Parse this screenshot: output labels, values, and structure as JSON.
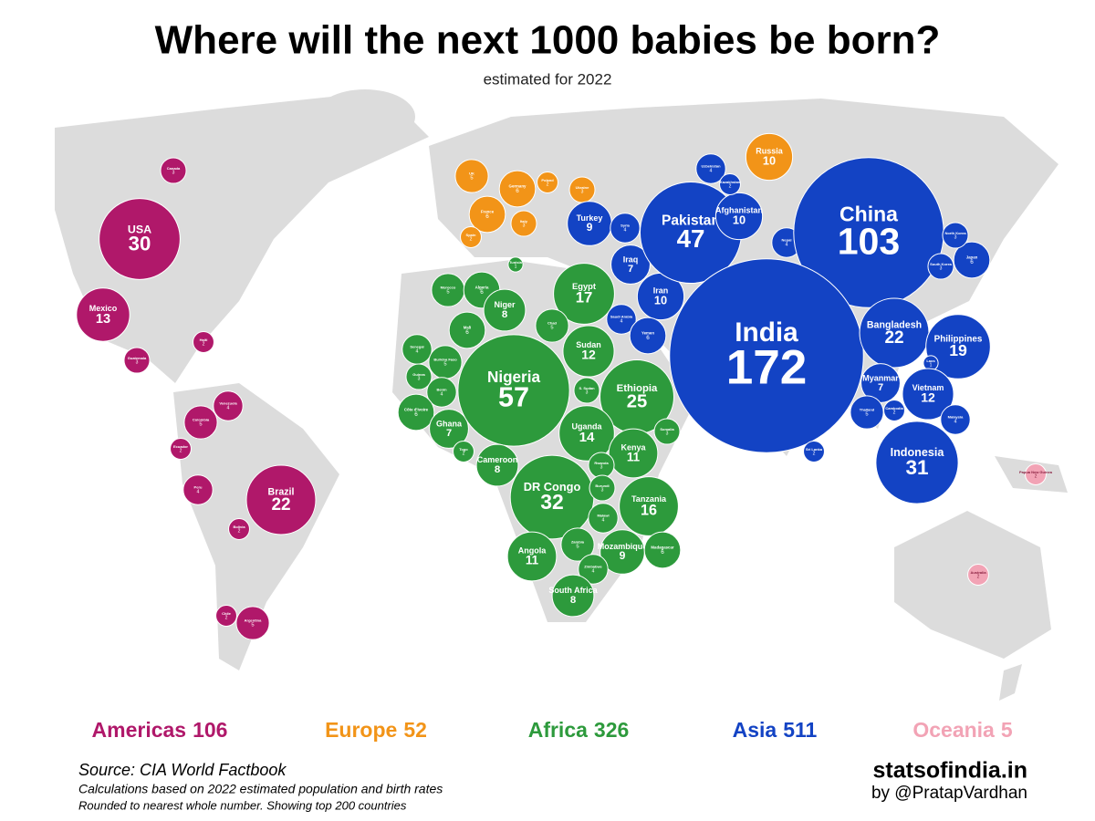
{
  "title": "Where will the next 1000 babies be born?",
  "subtitle": "estimated for 2022",
  "regions": [
    {
      "name": "Americas",
      "total": 106,
      "color": "#b0186a",
      "countries": [
        {
          "name": "Canada",
          "value": 3
        },
        {
          "name": "USA",
          "value": 30
        },
        {
          "name": "Mexico",
          "value": 13
        },
        {
          "name": "Guatemala",
          "value": 3
        },
        {
          "name": "Haiti",
          "value": 2
        },
        {
          "name": "Venezuela",
          "value": 4
        },
        {
          "name": "Colombia",
          "value": 5
        },
        {
          "name": "Ecuador",
          "value": 2
        },
        {
          "name": "Peru",
          "value": 4
        },
        {
          "name": "Brazil",
          "value": 22
        },
        {
          "name": "Bolivia",
          "value": 2
        },
        {
          "name": "Chile",
          "value": 2
        },
        {
          "name": "Argentina",
          "value": 5
        }
      ]
    },
    {
      "name": "Europe",
      "total": 52,
      "color": "#f29418",
      "countries": [
        {
          "name": "UK",
          "value": 5
        },
        {
          "name": "Germany",
          "value": 6
        },
        {
          "name": "Poland",
          "value": 2
        },
        {
          "name": "Ukraine",
          "value": 3
        },
        {
          "name": "France",
          "value": 6
        },
        {
          "name": "Italy",
          "value": 3
        },
        {
          "name": "Spain",
          "value": 2
        },
        {
          "name": "Russia",
          "value": 10
        }
      ]
    },
    {
      "name": "Africa",
      "total": 326,
      "color": "#2d9a3c",
      "countries": [
        {
          "name": "Tunisia",
          "value": 1
        },
        {
          "name": "Morocco",
          "value": 5
        },
        {
          "name": "Algeria",
          "value": 6
        },
        {
          "name": "Egypt",
          "value": 17
        },
        {
          "name": "Niger",
          "value": 8
        },
        {
          "name": "Mali",
          "value": 6
        },
        {
          "name": "Chad",
          "value": 5
        },
        {
          "name": "Senegal",
          "value": 4
        },
        {
          "name": "Burkina Faso",
          "value": 5
        },
        {
          "name": "Guinea",
          "value": 3
        },
        {
          "name": "Benin",
          "value": 4
        },
        {
          "name": "Côte d'Ivoire",
          "value": 6
        },
        {
          "name": "Ghana",
          "value": 7
        },
        {
          "name": "Togo",
          "value": 2
        },
        {
          "name": "Nigeria",
          "value": 57
        },
        {
          "name": "Sudan",
          "value": 12
        },
        {
          "name": "S. Sudan",
          "value": 3
        },
        {
          "name": "Ethiopia",
          "value": 25
        },
        {
          "name": "Somalia",
          "value": 3
        },
        {
          "name": "Uganda",
          "value": 14
        },
        {
          "name": "Kenya",
          "value": 11
        },
        {
          "name": "Cameroon",
          "value": 8
        },
        {
          "name": "DR Congo",
          "value": 32
        },
        {
          "name": "Rwanda",
          "value": 3
        },
        {
          "name": "Burundi",
          "value": 3
        },
        {
          "name": "Tanzania",
          "value": 16
        },
        {
          "name": "Malawi",
          "value": 4
        },
        {
          "name": "Zambia",
          "value": 5
        },
        {
          "name": "Mozambique",
          "value": 9
        },
        {
          "name": "Madagascar",
          "value": 6
        },
        {
          "name": "Zimbabwe",
          "value": 4
        },
        {
          "name": "Angola",
          "value": 11
        },
        {
          "name": "South Africa",
          "value": 8
        }
      ]
    },
    {
      "name": "Asia",
      "total": 511,
      "color": "#1343c4",
      "countries": [
        {
          "name": "Turkey",
          "value": 9
        },
        {
          "name": "Syria",
          "value": 4
        },
        {
          "name": "Iraq",
          "value": 7
        },
        {
          "name": "Iran",
          "value": 10
        },
        {
          "name": "Saudi Arabia",
          "value": 4
        },
        {
          "name": "Yemen",
          "value": 6
        },
        {
          "name": "Pakistan",
          "value": 47
        },
        {
          "name": "Afghanistan",
          "value": 10
        },
        {
          "name": "Uzbekistan",
          "value": 4
        },
        {
          "name": "Kazakhstan",
          "value": 2
        },
        {
          "name": "Nepal",
          "value": 4
        },
        {
          "name": "China",
          "value": 103
        },
        {
          "name": "India",
          "value": 172
        },
        {
          "name": "Bangladesh",
          "value": 22
        },
        {
          "name": "Japan",
          "value": 6
        },
        {
          "name": "North Korea",
          "value": 3
        },
        {
          "name": "South Korea",
          "value": 3
        },
        {
          "name": "Philippines",
          "value": 19
        },
        {
          "name": "Myanmar",
          "value": 7
        },
        {
          "name": "Thailand",
          "value": 5
        },
        {
          "name": "Laos",
          "value": 1
        },
        {
          "name": "Vietnam",
          "value": 12
        },
        {
          "name": "Cambodia",
          "value": 2
        },
        {
          "name": "Malaysia",
          "value": 4
        },
        {
          "name": "Indonesia",
          "value": 31
        },
        {
          "name": "Sri Lanka",
          "value": 2
        }
      ]
    },
    {
      "name": "Oceania",
      "total": 5,
      "color": "#f2a3b5",
      "countries": [
        {
          "name": "Papua New Guinea",
          "value": 2
        },
        {
          "name": "Australia",
          "value": 2
        }
      ]
    }
  ],
  "footer": {
    "source": "Source: CIA World Factbook",
    "notes": [
      "Calculations based on 2022 estimated population and birth rates",
      "Rounded to nearest whole number. Showing top 200 countries"
    ],
    "brand": "statsofindia.in",
    "author": "by @PratapVardhan"
  }
}
